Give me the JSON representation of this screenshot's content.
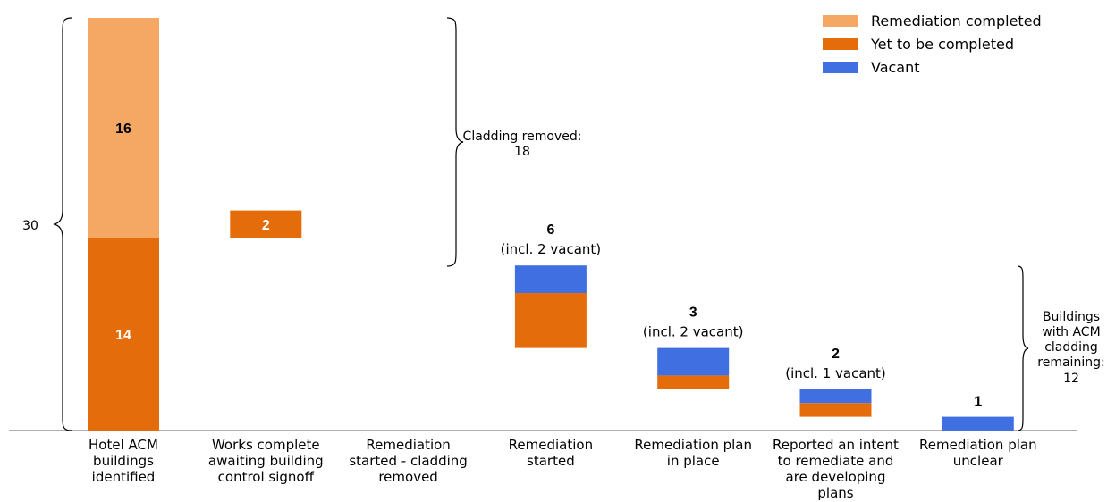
{
  "chart_data": {
    "type": "bar",
    "categories": [
      [
        "Hotel ACM",
        "buildings",
        "identified"
      ],
      [
        "Works complete",
        "awaiting building",
        "control signoff"
      ],
      [
        "Remediation",
        "started - cladding",
        "removed"
      ],
      [
        "Remediation",
        "started"
      ],
      [
        "Remediation plan",
        "in place"
      ],
      [
        "Reported an intent",
        "to remediate and",
        "are developing",
        "plans"
      ],
      [
        "Remediation plan",
        "unclear"
      ]
    ],
    "series": [
      {
        "name": "Remediation completed",
        "color": "#f5a864"
      },
      {
        "name": "Yet to be completed",
        "color": "#e46c0a"
      },
      {
        "name": "Vacant",
        "color": "#3f6fe0"
      }
    ],
    "bars": [
      {
        "segments": [
          {
            "series": 1,
            "value": 14
          },
          {
            "series": 0,
            "value": 16
          }
        ],
        "labels": [
          "14",
          "16"
        ]
      },
      {
        "base": 14,
        "segments": [
          {
            "series": 1,
            "value": 2
          }
        ],
        "labels": [
          "2"
        ]
      },
      {
        "base": 12,
        "segments": [],
        "labels": []
      },
      {
        "base": 6,
        "segments": [
          {
            "series": 1,
            "value": 4
          },
          {
            "series": 2,
            "value": 2
          }
        ],
        "top_value": "6",
        "top_note": "(incl. 2 vacant)"
      },
      {
        "base": 3,
        "segments": [
          {
            "series": 1,
            "value": 1
          },
          {
            "series": 2,
            "value": 2
          }
        ],
        "top_value": "3",
        "top_note": "(incl. 2 vacant)"
      },
      {
        "base": 1,
        "segments": [
          {
            "series": 1,
            "value": 1
          },
          {
            "series": 2,
            "value": 1
          }
        ],
        "top_value": "2",
        "top_note": "(incl. 1 vacant)"
      },
      {
        "base": 0,
        "segments": [
          {
            "series": 2,
            "value": 1
          }
        ],
        "top_value": "1"
      }
    ],
    "ylim": [
      0,
      30
    ],
    "annotations": {
      "total": "30",
      "cladding_removed": [
        "Cladding removed:",
        "18"
      ],
      "remaining": [
        "Buildings",
        "with ACM",
        "cladding",
        "remaining:",
        "12"
      ]
    }
  }
}
